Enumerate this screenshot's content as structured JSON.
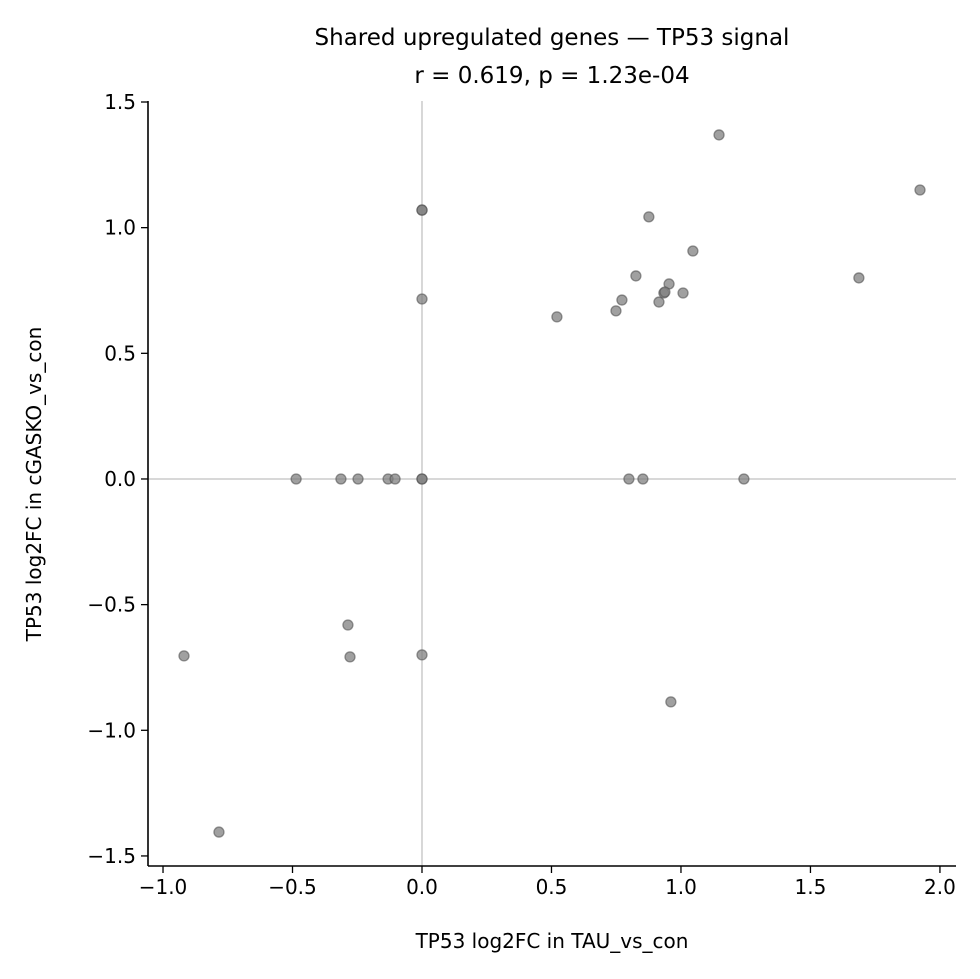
{
  "chart_data": {
    "type": "scatter",
    "title": "Shared upregulated genes — TP53 signal",
    "subtitle": "r = 0.619, p = 1.23e-04",
    "xlabel": "TP53 log2FC in TAU_vs_con",
    "ylabel": "TP53 log2FC in cGASKO_vs_con",
    "xlim": [
      -1.058,
      2.062
    ],
    "ylim": [
      -1.54,
      1.504
    ],
    "xticks": [
      -1.0,
      -0.5,
      0.0,
      0.5,
      1.0,
      1.5,
      2.0
    ],
    "xtick_labels": [
      "−1.0",
      "−0.5",
      "0.0",
      "0.5",
      "1.0",
      "1.5",
      "2.0"
    ],
    "yticks": [
      1.5,
      1.0,
      0.5,
      0.0,
      -0.5,
      -1.0,
      -1.5
    ],
    "ytick_labels": [
      "1.5",
      "1.0",
      "0.5",
      "0.0",
      "−0.5",
      "−1.0",
      "−1.5"
    ],
    "reference_lines": {
      "x": 0,
      "y": 0
    },
    "grid": false,
    "point_color": "#808080",
    "points": [
      {
        "x": 1.147,
        "y": 1.369
      },
      {
        "x": 1.923,
        "y": 1.15
      },
      {
        "x": 0.0,
        "y": 1.07
      },
      {
        "x": 0.0,
        "y": 1.07
      },
      {
        "x": 0.876,
        "y": 1.043
      },
      {
        "x": 1.046,
        "y": 0.907
      },
      {
        "x": 0.826,
        "y": 0.808
      },
      {
        "x": 1.687,
        "y": 0.8
      },
      {
        "x": 0.954,
        "y": 0.776
      },
      {
        "x": 0.934,
        "y": 0.74
      },
      {
        "x": 0.938,
        "y": 0.744
      },
      {
        "x": 1.008,
        "y": 0.74
      },
      {
        "x": 0.772,
        "y": 0.712
      },
      {
        "x": 0.915,
        "y": 0.704
      },
      {
        "x": 0.749,
        "y": 0.669
      },
      {
        "x": 0.521,
        "y": 0.645
      },
      {
        "x": 0.0,
        "y": 0.716
      },
      {
        "x": -0.486,
        "y": 0.0
      },
      {
        "x": -0.313,
        "y": 0.0
      },
      {
        "x": -0.247,
        "y": 0.0
      },
      {
        "x": -0.131,
        "y": 0.0
      },
      {
        "x": -0.104,
        "y": 0.0
      },
      {
        "x": 0.0,
        "y": 0.0
      },
      {
        "x": 0.0,
        "y": 0.0
      },
      {
        "x": 0.799,
        "y": 0.0
      },
      {
        "x": 0.853,
        "y": 0.0
      },
      {
        "x": 1.243,
        "y": 0.0
      },
      {
        "x": -0.286,
        "y": -0.581
      },
      {
        "x": -0.278,
        "y": -0.708
      },
      {
        "x": 0.0,
        "y": -0.7
      },
      {
        "x": -0.919,
        "y": -0.704
      },
      {
        "x": 0.961,
        "y": -0.887
      },
      {
        "x": -0.784,
        "y": -1.405
      }
    ]
  }
}
